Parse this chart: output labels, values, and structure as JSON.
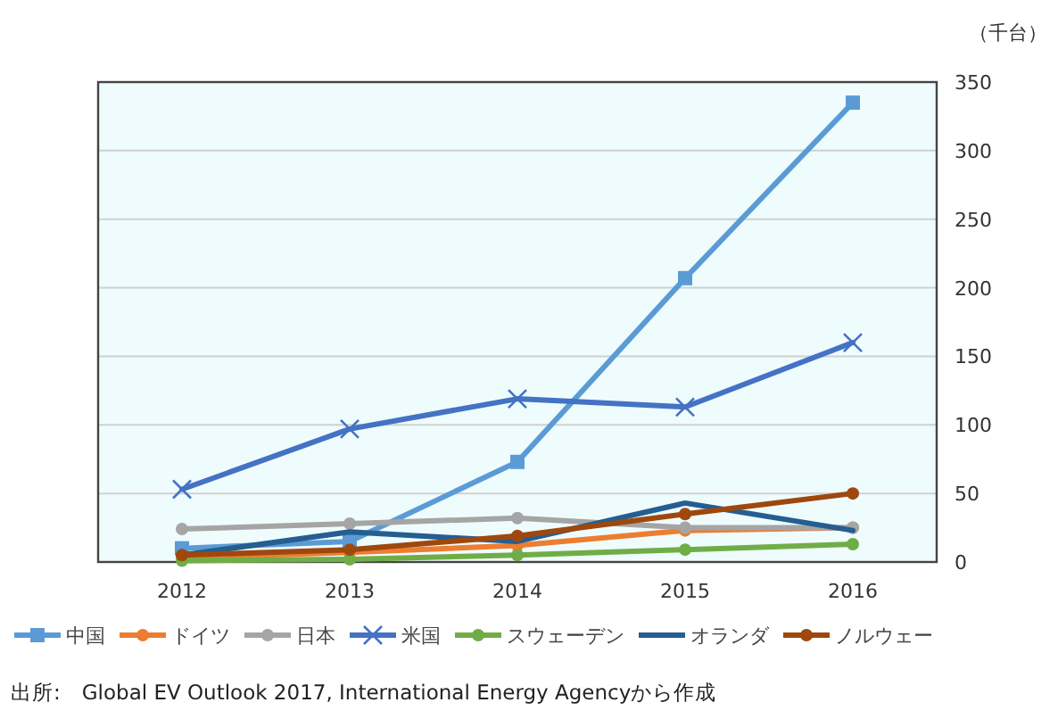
{
  "chart_data": {
    "type": "line",
    "ylabel": "（千台）",
    "categories": [
      "2012",
      "2013",
      "2014",
      "2015",
      "2016"
    ],
    "ylim": [
      0,
      350
    ],
    "yticks": [
      0,
      50,
      100,
      150,
      200,
      250,
      300,
      350
    ],
    "grid": "y",
    "legend": "bottom",
    "series": [
      {
        "name": "中国",
        "color": "#5b9bd5",
        "marker": "square",
        "values": [
          10,
          15,
          73,
          207,
          335
        ]
      },
      {
        "name": "ドイツ",
        "color": "#ed7d31",
        "marker": "circle",
        "values": [
          3,
          7,
          12,
          23,
          25
        ]
      },
      {
        "name": "日本",
        "color": "#a5a5a5",
        "marker": "circle",
        "values": [
          24,
          28,
          32,
          25,
          25
        ]
      },
      {
        "name": "米国",
        "color": "#4472c4",
        "marker": "cross",
        "values": [
          53,
          97,
          119,
          113,
          160
        ]
      },
      {
        "name": "スウェーデン",
        "color": "#70ad47",
        "marker": "circle",
        "values": [
          1,
          2,
          5,
          9,
          13
        ]
      },
      {
        "name": "オランダ",
        "color": "#255e91",
        "marker": "none",
        "values": [
          5,
          22,
          15,
          43,
          23
        ]
      },
      {
        "name": "ノルウェー",
        "color": "#9e480e",
        "marker": "circle",
        "values": [
          5,
          9,
          19,
          35,
          50
        ]
      }
    ],
    "annotations": [
      "出所:　Global EV Outlook 2017, International Energy Agencyから作成"
    ]
  }
}
